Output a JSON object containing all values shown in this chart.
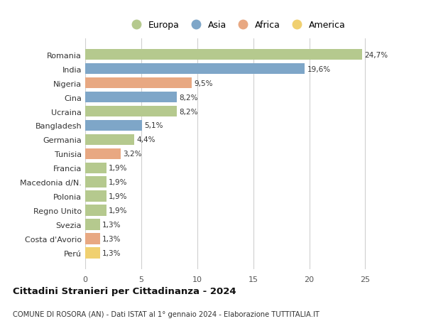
{
  "countries": [
    "Romania",
    "India",
    "Nigeria",
    "Cina",
    "Ucraina",
    "Bangladesh",
    "Germania",
    "Tunisia",
    "Francia",
    "Macedonia d/N.",
    "Polonia",
    "Regno Unito",
    "Svezia",
    "Costa d'Avorio",
    "Perú"
  ],
  "values": [
    24.7,
    19.6,
    9.5,
    8.2,
    8.2,
    5.1,
    4.4,
    3.2,
    1.9,
    1.9,
    1.9,
    1.9,
    1.3,
    1.3,
    1.3
  ],
  "labels": [
    "24,7%",
    "19,6%",
    "9,5%",
    "8,2%",
    "8,2%",
    "5,1%",
    "4,4%",
    "3,2%",
    "1,9%",
    "1,9%",
    "1,9%",
    "1,9%",
    "1,3%",
    "1,3%",
    "1,3%"
  ],
  "continents": [
    "Europa",
    "Asia",
    "Africa",
    "Asia",
    "Europa",
    "Asia",
    "Europa",
    "Africa",
    "Europa",
    "Europa",
    "Europa",
    "Europa",
    "Europa",
    "Africa",
    "America"
  ],
  "colors": {
    "Europa": "#b5c98e",
    "Asia": "#7ea6c8",
    "Africa": "#e8a882",
    "America": "#f0d070"
  },
  "legend_order": [
    "Europa",
    "Asia",
    "Africa",
    "America"
  ],
  "title": "Cittadini Stranieri per Cittadinanza - 2024",
  "subtitle": "COMUNE DI ROSORA (AN) - Dati ISTAT al 1° gennaio 2024 - Elaborazione TUTTITALIA.IT",
  "xlim": [
    0,
    27
  ],
  "xticks": [
    0,
    5,
    10,
    15,
    20,
    25
  ],
  "bg_color": "#ffffff",
  "grid_color": "#d0d0d0",
  "bar_height": 0.78
}
